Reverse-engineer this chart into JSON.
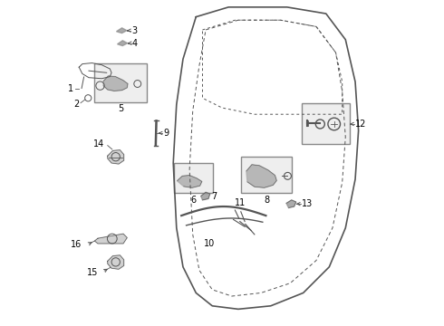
{
  "bg_color": "#ffffff",
  "line_color": "#555555",
  "label_color": "#000000",
  "fig_width": 4.9,
  "fig_height": 3.6,
  "dpi": 100
}
